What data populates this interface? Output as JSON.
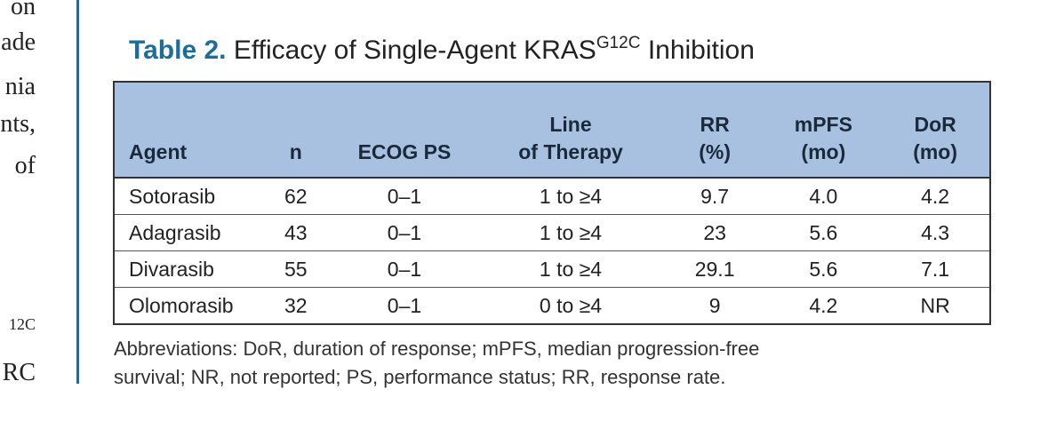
{
  "left_column": {
    "lines": [
      "on",
      "ade",
      "nia",
      "nts,",
      "of"
    ],
    "fragment_1": "12C",
    "fragment_2": "RC"
  },
  "caption": {
    "label": "Table 2.",
    "title_prefix": "Efficacy of Single-Agent KRAS",
    "superscript": "G12C",
    "title_suffix": "Inhibition"
  },
  "table": {
    "headers": {
      "agent": "Agent",
      "n": "n",
      "ecog": "ECOG PS",
      "line_1": "Line",
      "line_2": "of Therapy",
      "rr_1": "RR",
      "rr_2": "(%)",
      "mpfs_1": "mPFS",
      "mpfs_2": "(mo)",
      "dor_1": "DoR",
      "dor_2": "(mo)"
    },
    "rows": [
      {
        "agent": "Sotorasib",
        "n": "62",
        "ecog": "0–1",
        "line": "1 to ≥4",
        "rr": "9.7",
        "mpfs": "4.0",
        "dor": "4.2"
      },
      {
        "agent": "Adagrasib",
        "n": "43",
        "ecog": "0–1",
        "line": "1 to ≥4",
        "rr": "23",
        "mpfs": "5.6",
        "dor": "4.3"
      },
      {
        "agent": "Divarasib",
        "n": "55",
        "ecog": "0–1",
        "line": "1 to ≥4",
        "rr": "29.1",
        "mpfs": "5.6",
        "dor": "7.1"
      },
      {
        "agent": "Olomorasib",
        "n": "32",
        "ecog": "0–1",
        "line": "0 to ≥4",
        "rr": "9",
        "mpfs": "4.2",
        "dor": "NR"
      }
    ]
  },
  "footnote": {
    "line_1": "Abbreviations: DoR, duration of response; mPFS, median progression-free",
    "line_2": "survival; NR, not reported; PS, performance status; RR, response rate."
  },
  "colors": {
    "accent": "#1e6d99",
    "header_fill": "#a9c1e0",
    "border": "#333333"
  }
}
